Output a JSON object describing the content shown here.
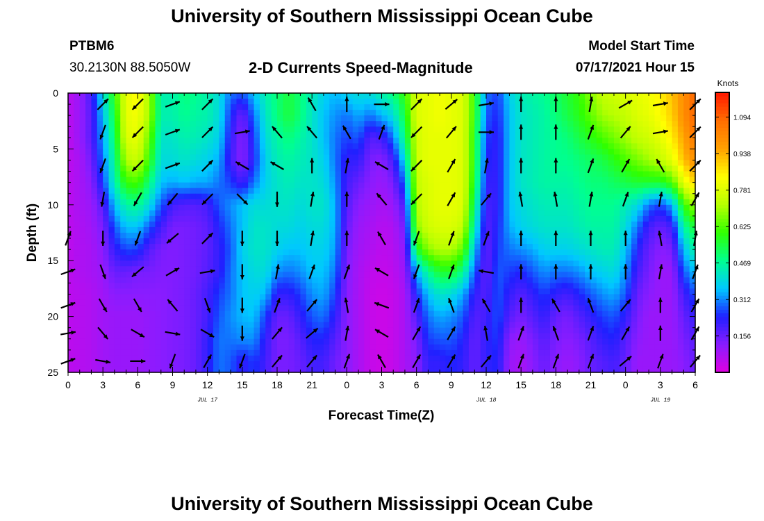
{
  "header": {
    "title_top": "University of Southern Mississippi Ocean Cube",
    "title_bottom": "University of Southern Mississippi Ocean Cube",
    "station": "PTBM6",
    "location": "30.2130N  88.5050W",
    "plot_title": "2-D Currents Speed-Magnitude",
    "model_label": "Model Start Time",
    "model_time": "07/17/2021 Hour 15"
  },
  "chart_data": {
    "type": "heatmap",
    "title": "2-D Currents Speed-Magnitude",
    "xlabel": "Forecast Time(Z)",
    "ylabel": "Depth (ft)",
    "colorbar_label": "Knots",
    "x_tick_labels": [
      "0",
      "3",
      "6",
      "9",
      "12",
      "15",
      "18",
      "21",
      "0",
      "3",
      "6",
      "9",
      "12",
      "15",
      "18",
      "21",
      "0",
      "3",
      "6"
    ],
    "x_date_labels": [
      {
        "label": "JUL 17",
        "hour": 12
      },
      {
        "label": "JUL 18",
        "hour": 36
      },
      {
        "label": "JUL 19",
        "hour": 51
      }
    ],
    "xlim_hours": [
      0,
      54
    ],
    "y_tick_labels": [
      "0",
      "5",
      "10",
      "15",
      "20",
      "25"
    ],
    "ylim_ft": [
      0,
      25
    ],
    "y_inverted": true,
    "colorbar_ticks": [
      "0.156",
      "0.312",
      "0.469",
      "0.625",
      "0.781",
      "0.938",
      "1.094"
    ],
    "colorbar_range_knots": [
      0,
      1.2
    ],
    "colors": [
      "#e000e0",
      "#8a1cff",
      "#2020ff",
      "#00c8ff",
      "#00ff90",
      "#30ff00",
      "#b8ff00",
      "#ffff00",
      "#ffa000",
      "#ff6e00",
      "#ff1800"
    ],
    "speed_grid": {
      "times_hours": [
        0,
        1,
        2,
        3,
        4,
        5,
        6,
        7,
        8,
        9,
        10,
        11,
        12,
        13,
        14,
        15,
        16,
        17,
        18,
        19,
        20,
        21,
        22,
        23,
        24,
        25,
        26,
        27,
        28,
        29,
        30,
        31,
        32,
        33,
        34,
        35,
        36,
        37,
        38,
        39,
        40,
        41,
        42,
        43,
        44,
        45,
        46,
        47,
        48,
        49,
        50,
        51,
        52,
        53,
        54
      ],
      "depths_ft": [
        0,
        2,
        4,
        6,
        8,
        10,
        12,
        14,
        16,
        18,
        20,
        22,
        24,
        25
      ],
      "columns_knots": [
        [
          0.05,
          0.05,
          0.05,
          0.05,
          0.05,
          0.05,
          0.05,
          0.05,
          0.05,
          0.05,
          0.05,
          0.05,
          0.05,
          0.05
        ],
        [
          0.1,
          0.1,
          0.1,
          0.08,
          0.08,
          0.08,
          0.07,
          0.07,
          0.07,
          0.06,
          0.06,
          0.06,
          0.06,
          0.06
        ],
        [
          0.2,
          0.18,
          0.18,
          0.15,
          0.12,
          0.1,
          0.09,
          0.08,
          0.08,
          0.07,
          0.07,
          0.07,
          0.07,
          0.07
        ],
        [
          0.4,
          0.36,
          0.33,
          0.3,
          0.26,
          0.18,
          0.14,
          0.12,
          0.1,
          0.09,
          0.09,
          0.09,
          0.09,
          0.09
        ],
        [
          0.6,
          0.55,
          0.52,
          0.48,
          0.45,
          0.36,
          0.28,
          0.22,
          0.16,
          0.12,
          0.1,
          0.1,
          0.1,
          0.1
        ],
        [
          0.8,
          0.8,
          0.78,
          0.72,
          0.6,
          0.46,
          0.36,
          0.27,
          0.16,
          0.12,
          0.1,
          0.1,
          0.1,
          0.1
        ],
        [
          0.85,
          0.82,
          0.8,
          0.75,
          0.62,
          0.48,
          0.36,
          0.26,
          0.14,
          0.12,
          0.1,
          0.1,
          0.1,
          0.1
        ],
        [
          0.7,
          0.7,
          0.65,
          0.6,
          0.5,
          0.4,
          0.28,
          0.18,
          0.14,
          0.12,
          0.11,
          0.11,
          0.11,
          0.11
        ],
        [
          0.45,
          0.45,
          0.42,
          0.4,
          0.36,
          0.28,
          0.2,
          0.14,
          0.13,
          0.12,
          0.12,
          0.12,
          0.12,
          0.12
        ],
        [
          0.45,
          0.45,
          0.42,
          0.4,
          0.34,
          0.2,
          0.14,
          0.13,
          0.13,
          0.13,
          0.13,
          0.13,
          0.13,
          0.13
        ],
        [
          0.5,
          0.48,
          0.45,
          0.42,
          0.36,
          0.18,
          0.14,
          0.14,
          0.14,
          0.14,
          0.14,
          0.14,
          0.14,
          0.14
        ],
        [
          0.48,
          0.46,
          0.44,
          0.4,
          0.34,
          0.18,
          0.15,
          0.15,
          0.15,
          0.16,
          0.16,
          0.16,
          0.16,
          0.16
        ],
        [
          0.45,
          0.45,
          0.42,
          0.38,
          0.34,
          0.2,
          0.17,
          0.17,
          0.18,
          0.2,
          0.2,
          0.22,
          0.22,
          0.22
        ],
        [
          0.4,
          0.4,
          0.38,
          0.34,
          0.3,
          0.28,
          0.24,
          0.22,
          0.22,
          0.26,
          0.28,
          0.3,
          0.3,
          0.3
        ],
        [
          0.3,
          0.25,
          0.22,
          0.2,
          0.26,
          0.32,
          0.3,
          0.28,
          0.3,
          0.3,
          0.32,
          0.3,
          0.28,
          0.28
        ],
        [
          0.28,
          0.15,
          0.12,
          0.12,
          0.2,
          0.36,
          0.36,
          0.38,
          0.36,
          0.36,
          0.35,
          0.32,
          0.22,
          0.22
        ],
        [
          0.36,
          0.3,
          0.26,
          0.24,
          0.3,
          0.4,
          0.42,
          0.42,
          0.4,
          0.38,
          0.36,
          0.32,
          0.26,
          0.26
        ],
        [
          0.45,
          0.42,
          0.4,
          0.38,
          0.38,
          0.4,
          0.42,
          0.42,
          0.4,
          0.35,
          0.26,
          0.22,
          0.2,
          0.2
        ],
        [
          0.5,
          0.5,
          0.46,
          0.44,
          0.42,
          0.42,
          0.4,
          0.38,
          0.32,
          0.22,
          0.16,
          0.14,
          0.14,
          0.14
        ],
        [
          0.55,
          0.55,
          0.5,
          0.46,
          0.44,
          0.42,
          0.4,
          0.36,
          0.3,
          0.22,
          0.16,
          0.14,
          0.14,
          0.14
        ],
        [
          0.5,
          0.5,
          0.46,
          0.44,
          0.42,
          0.4,
          0.38,
          0.36,
          0.32,
          0.26,
          0.22,
          0.18,
          0.16,
          0.16
        ],
        [
          0.44,
          0.42,
          0.42,
          0.42,
          0.42,
          0.42,
          0.4,
          0.38,
          0.36,
          0.32,
          0.28,
          0.24,
          0.2,
          0.2
        ],
        [
          0.38,
          0.36,
          0.36,
          0.38,
          0.4,
          0.42,
          0.4,
          0.38,
          0.36,
          0.34,
          0.3,
          0.24,
          0.2,
          0.2
        ],
        [
          0.35,
          0.32,
          0.3,
          0.3,
          0.32,
          0.34,
          0.34,
          0.33,
          0.3,
          0.26,
          0.22,
          0.18,
          0.15,
          0.15
        ],
        [
          0.38,
          0.3,
          0.26,
          0.22,
          0.2,
          0.18,
          0.16,
          0.14,
          0.13,
          0.12,
          0.12,
          0.12,
          0.12,
          0.12
        ],
        [
          0.4,
          0.34,
          0.28,
          0.22,
          0.16,
          0.12,
          0.1,
          0.09,
          0.08,
          0.08,
          0.08,
          0.08,
          0.08,
          0.08
        ],
        [
          0.4,
          0.3,
          0.18,
          0.14,
          0.12,
          0.1,
          0.08,
          0.07,
          0.05,
          0.04,
          0.04,
          0.04,
          0.04,
          0.04
        ],
        [
          0.45,
          0.35,
          0.2,
          0.12,
          0.1,
          0.08,
          0.06,
          0.05,
          0.04,
          0.03,
          0.03,
          0.03,
          0.03,
          0.03
        ],
        [
          0.5,
          0.4,
          0.3,
          0.2,
          0.14,
          0.1,
          0.07,
          0.06,
          0.05,
          0.04,
          0.04,
          0.04,
          0.04,
          0.04
        ],
        [
          0.6,
          0.55,
          0.5,
          0.4,
          0.3,
          0.2,
          0.15,
          0.12,
          0.1,
          0.08,
          0.08,
          0.08,
          0.08,
          0.08
        ],
        [
          0.78,
          0.78,
          0.76,
          0.76,
          0.74,
          0.72,
          0.68,
          0.56,
          0.34,
          0.24,
          0.18,
          0.14,
          0.12,
          0.12
        ],
        [
          0.8,
          0.8,
          0.8,
          0.8,
          0.78,
          0.78,
          0.76,
          0.68,
          0.48,
          0.36,
          0.3,
          0.26,
          0.22,
          0.22
        ],
        [
          0.82,
          0.82,
          0.8,
          0.8,
          0.8,
          0.8,
          0.78,
          0.72,
          0.56,
          0.42,
          0.34,
          0.28,
          0.22,
          0.22
        ],
        [
          0.8,
          0.8,
          0.8,
          0.8,
          0.8,
          0.8,
          0.78,
          0.72,
          0.56,
          0.4,
          0.32,
          0.28,
          0.24,
          0.24
        ],
        [
          0.78,
          0.78,
          0.78,
          0.78,
          0.78,
          0.78,
          0.74,
          0.64,
          0.48,
          0.34,
          0.28,
          0.24,
          0.22,
          0.22
        ],
        [
          0.6,
          0.6,
          0.58,
          0.58,
          0.56,
          0.5,
          0.44,
          0.36,
          0.28,
          0.22,
          0.18,
          0.16,
          0.16,
          0.16
        ],
        [
          0.3,
          0.28,
          0.26,
          0.24,
          0.22,
          0.2,
          0.18,
          0.16,
          0.16,
          0.18,
          0.2,
          0.22,
          0.22,
          0.22
        ],
        [
          0.26,
          0.24,
          0.22,
          0.22,
          0.22,
          0.22,
          0.24,
          0.26,
          0.28,
          0.28,
          0.28,
          0.26,
          0.24,
          0.24
        ],
        [
          0.38,
          0.36,
          0.36,
          0.36,
          0.36,
          0.36,
          0.34,
          0.3,
          0.26,
          0.22,
          0.18,
          0.12,
          0.1,
          0.1
        ],
        [
          0.44,
          0.42,
          0.42,
          0.42,
          0.42,
          0.4,
          0.38,
          0.32,
          0.24,
          0.18,
          0.14,
          0.1,
          0.08,
          0.08
        ],
        [
          0.46,
          0.44,
          0.44,
          0.44,
          0.44,
          0.42,
          0.4,
          0.34,
          0.28,
          0.22,
          0.18,
          0.14,
          0.12,
          0.12
        ],
        [
          0.48,
          0.46,
          0.46,
          0.46,
          0.46,
          0.44,
          0.42,
          0.38,
          0.32,
          0.26,
          0.22,
          0.18,
          0.16,
          0.16
        ],
        [
          0.52,
          0.5,
          0.48,
          0.48,
          0.46,
          0.44,
          0.42,
          0.38,
          0.3,
          0.22,
          0.16,
          0.14,
          0.12,
          0.12
        ],
        [
          0.56,
          0.54,
          0.5,
          0.48,
          0.46,
          0.44,
          0.42,
          0.38,
          0.3,
          0.2,
          0.14,
          0.12,
          0.1,
          0.1
        ],
        [
          0.6,
          0.58,
          0.54,
          0.5,
          0.48,
          0.46,
          0.44,
          0.4,
          0.32,
          0.24,
          0.18,
          0.14,
          0.12,
          0.12
        ],
        [
          0.68,
          0.64,
          0.58,
          0.52,
          0.5,
          0.48,
          0.46,
          0.42,
          0.36,
          0.28,
          0.22,
          0.18,
          0.16,
          0.16
        ],
        [
          0.74,
          0.7,
          0.62,
          0.54,
          0.5,
          0.48,
          0.46,
          0.44,
          0.38,
          0.32,
          0.26,
          0.22,
          0.18,
          0.18
        ],
        [
          0.76,
          0.72,
          0.66,
          0.58,
          0.52,
          0.48,
          0.46,
          0.44,
          0.4,
          0.34,
          0.28,
          0.24,
          0.2,
          0.2
        ],
        [
          0.78,
          0.74,
          0.7,
          0.62,
          0.54,
          0.44,
          0.4,
          0.36,
          0.32,
          0.28,
          0.22,
          0.18,
          0.16,
          0.16
        ],
        [
          0.8,
          0.78,
          0.74,
          0.66,
          0.56,
          0.4,
          0.3,
          0.24,
          0.2,
          0.16,
          0.14,
          0.12,
          0.1,
          0.1
        ],
        [
          0.82,
          0.8,
          0.76,
          0.7,
          0.56,
          0.3,
          0.2,
          0.16,
          0.14,
          0.12,
          0.1,
          0.1,
          0.1,
          0.1
        ],
        [
          0.86,
          0.84,
          0.8,
          0.74,
          0.56,
          0.26,
          0.16,
          0.12,
          0.1,
          0.1,
          0.1,
          0.1,
          0.1,
          0.1
        ],
        [
          0.92,
          0.9,
          0.86,
          0.8,
          0.62,
          0.34,
          0.2,
          0.14,
          0.1,
          0.1,
          0.1,
          0.1,
          0.1,
          0.1
        ],
        [
          1.0,
          1.0,
          0.96,
          0.92,
          0.8,
          0.6,
          0.46,
          0.36,
          0.28,
          0.2,
          0.16,
          0.14,
          0.12,
          0.12
        ],
        [
          1.1,
          1.1,
          1.06,
          1.0,
          0.9,
          0.7,
          0.56,
          0.46,
          0.36,
          0.28,
          0.22,
          0.18,
          0.16,
          0.16
        ]
      ]
    },
    "vectors_direction_deg": {
      "times_hours": [
        0,
        3,
        6,
        9,
        12,
        15,
        18,
        21,
        24,
        27,
        30,
        33,
        36,
        39,
        42,
        45,
        48,
        51,
        54
      ],
      "depths_ft": [
        1,
        3.5,
        6.5,
        9.5,
        13,
        16,
        19,
        21.5,
        24
      ],
      "directions": [
        [
          null,
          null,
          null,
          null,
          20,
          70,
          70,
          80,
          70
        ],
        [
          45,
          200,
          200,
          190,
          180,
          160,
          150,
          140,
          100
        ],
        [
          225,
          225,
          225,
          210,
          200,
          230,
          150,
          120,
          90
        ],
        [
          70,
          70,
          70,
          220,
          230,
          60,
          320,
          100,
          200
        ],
        [
          45,
          45,
          45,
          225,
          45,
          80,
          160,
          120,
          30
        ],
        [
          null,
          80,
          300,
          135,
          180,
          180,
          180,
          180,
          200
        ],
        [
          null,
          320,
          300,
          180,
          180,
          10,
          20,
          40,
          40
        ],
        [
          330,
          320,
          0,
          10,
          10,
          20,
          40,
          50,
          40
        ],
        [
          0,
          330,
          10,
          0,
          0,
          20,
          350,
          10,
          20
        ],
        [
          90,
          20,
          300,
          320,
          330,
          300,
          290,
          300,
          330
        ],
        [
          45,
          225,
          225,
          225,
          200,
          200,
          20,
          30,
          30
        ],
        [
          50,
          40,
          30,
          30,
          20,
          20,
          340,
          30,
          30
        ],
        [
          80,
          90,
          10,
          40,
          20,
          280,
          330,
          350,
          40
        ],
        [
          0,
          0,
          0,
          350,
          0,
          0,
          0,
          20,
          20
        ],
        [
          0,
          0,
          0,
          350,
          0,
          0,
          330,
          340,
          20
        ],
        [
          10,
          20,
          20,
          10,
          0,
          0,
          340,
          20,
          20
        ],
        [
          60,
          40,
          30,
          20,
          0,
          0,
          40,
          30,
          50
        ],
        [
          80,
          80,
          330,
          10,
          350,
          10,
          0,
          0,
          20
        ],
        [
          45,
          45,
          45,
          30,
          10,
          20,
          30,
          30,
          40
        ]
      ]
    }
  }
}
